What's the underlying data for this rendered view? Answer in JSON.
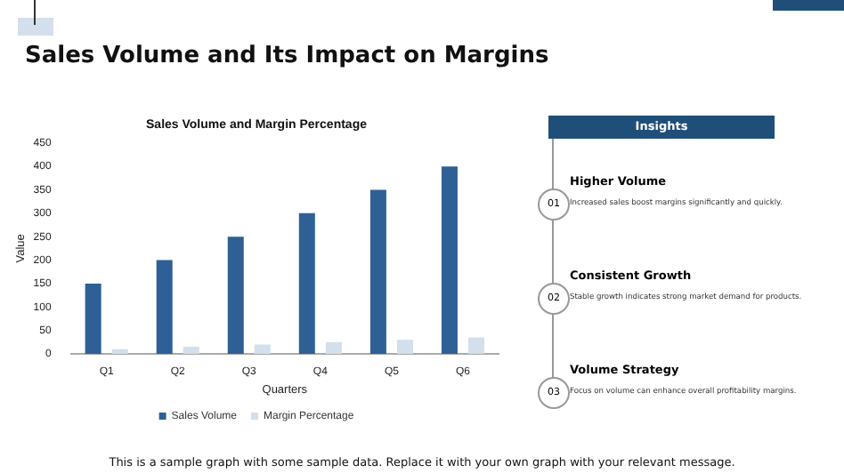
{
  "chart_data": {
    "type": "bar",
    "title": "Sales Volume and Its Impact on Margins",
    "subtitle": "Sales Volume and Margin Percentage",
    "xlabel": "Quarters",
    "ylabel": "Value",
    "categories": [
      "Q1",
      "Q2",
      "Q3",
      "Q4",
      "Q5",
      "Q6"
    ],
    "series": [
      {
        "name": "Sales Volume",
        "color": "#2e6096",
        "values": [
          150,
          200,
          250,
          300,
          350,
          400
        ]
      },
      {
        "name": "Margin Percentage",
        "color": "#d3dfec",
        "values": [
          10,
          15,
          20,
          25,
          30,
          35
        ]
      }
    ],
    "ylim": [
      0,
      450
    ],
    "yticks": [
      0,
      50,
      100,
      150,
      200,
      250,
      300,
      350,
      400,
      450
    ],
    "grid": false,
    "legend": "bottom",
    "annotations": [
      "Insights",
      "01",
      "Higher Volume",
      "Increased sales boost margins significantly and quickly.",
      "02",
      "Consistent Growth",
      "Stable growth indicates strong market demand for products.",
      "03",
      "Volume Strategy",
      "Focus on volume can enhance overall profitability margins.",
      "This is a sample graph with some sample data. Replace it with your own graph with your relevant message."
    ]
  }
}
